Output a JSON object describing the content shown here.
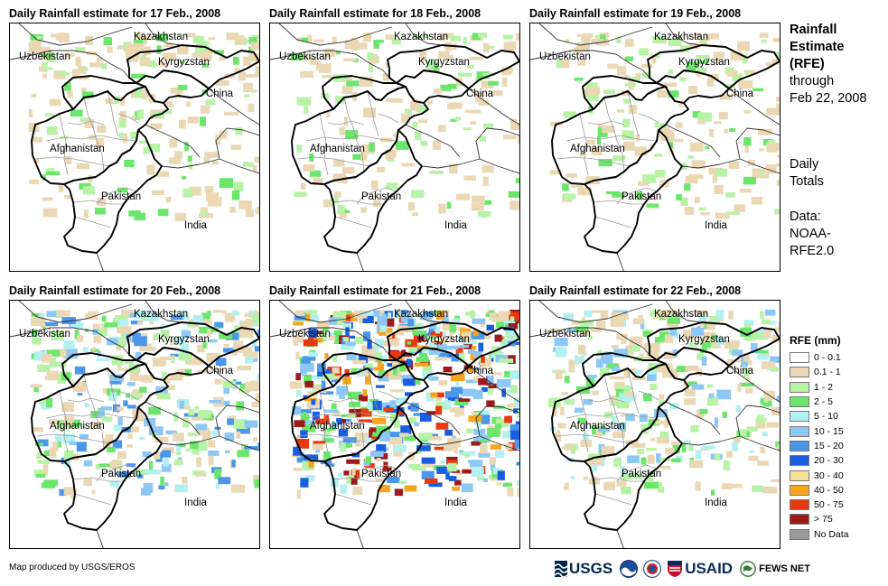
{
  "panels": [
    {
      "title": "Daily Rainfall estimate for 17 Feb., 2008",
      "rain_intensity": 0.25
    },
    {
      "title": "Daily Rainfall estimate for 18 Feb., 2008",
      "rain_intensity": 0.15
    },
    {
      "title": "Daily Rainfall estimate for 19 Feb., 2008",
      "rain_intensity": 0.2
    },
    {
      "title": "Daily Rainfall estimate for 20 Feb., 2008",
      "rain_intensity": 0.55
    },
    {
      "title": "Daily Rainfall estimate for 21 Feb., 2008",
      "rain_intensity": 0.95
    },
    {
      "title": "Daily Rainfall estimate for 22 Feb., 2008",
      "rain_intensity": 0.45
    }
  ],
  "map_labels": {
    "kazakhstan": "Kazakhstan",
    "uzbekistan": "Uzbekistan",
    "kyrgyzstan": "Kyrgyzstan",
    "china": "China",
    "afghanistan": "Afghanistan",
    "pakistan": "Pakistan",
    "india": "India"
  },
  "sidebar": {
    "title_line1": "Rainfall",
    "title_line2": "Estimate",
    "title_line3": "(RFE)",
    "through": "through",
    "date": "Feb 22, 2008",
    "daily_line1": "Daily",
    "daily_line2": "Totals",
    "data_line1": "Data:",
    "data_line2": "NOAA-",
    "data_line3": "RFE2.0"
  },
  "legend": {
    "title": "RFE (mm)",
    "items": [
      {
        "label": "0 - 0.1",
        "color": "#ffffff"
      },
      {
        "label": "0.1 - 1",
        "color": "#ead8b4"
      },
      {
        "label": "1 - 2",
        "color": "#b7f2a6"
      },
      {
        "label": "2 - 5",
        "color": "#6be66b"
      },
      {
        "label": "5 - 10",
        "color": "#b3f0f2"
      },
      {
        "label": "10 - 15",
        "color": "#8cc7f5"
      },
      {
        "label": "15 - 20",
        "color": "#4a96ea"
      },
      {
        "label": "20 - 30",
        "color": "#1a5ee0"
      },
      {
        "label": "30 - 40",
        "color": "#f5e09a"
      },
      {
        "label": "40 - 50",
        "color": "#f5a51e"
      },
      {
        "label": "50 - 75",
        "color": "#e83a10"
      },
      {
        "label": "> 75",
        "color": "#9c1a1a"
      },
      {
        "label": "No Data",
        "color": "#999999"
      }
    ]
  },
  "credit": "Map produced by USGS/EROS",
  "logos": {
    "usgs": "USGS",
    "usaid": "USAID",
    "fews": "FEWS NET"
  }
}
